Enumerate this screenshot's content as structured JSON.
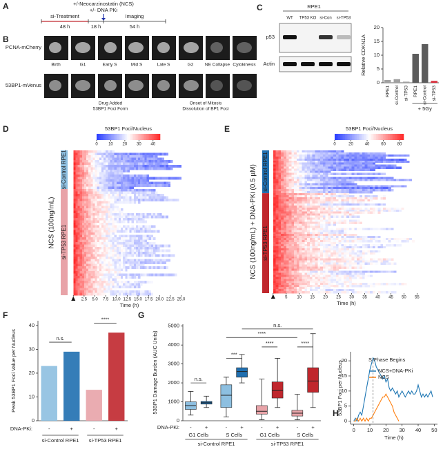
{
  "panel_labels": [
    "A",
    "B",
    "C",
    "D",
    "E",
    "F",
    "G",
    "H"
  ],
  "timeline": {
    "drug": "+/-Neocarzinostatin (NCS)",
    "pki": "+/- DNA PKi",
    "treatment": "si-Treatment",
    "t1": "48 h",
    "t2": "18 h",
    "imaging": "Imaging",
    "t3": "54 h"
  },
  "images": {
    "rows": [
      "PCNA-mCherry",
      "53BP1-mVenus"
    ],
    "columns": [
      "Birth",
      "G1",
      "Early S",
      "Mid S",
      "Late S",
      "G2",
      "NE Collapse",
      "Cytokinesis"
    ],
    "notes": [
      "Drug Added",
      "53BP1 Foci Form",
      "Onset of Mitosis",
      "Dissolution of BP1 Foci"
    ]
  },
  "blot": {
    "title": "RPE1",
    "lanes": [
      "WT",
      "TP53 KO",
      "si-Con",
      "si-TP53"
    ],
    "bands": [
      "p53",
      "Actin"
    ]
  },
  "chart_data": [
    {
      "type": "bar",
      "ylabel": "Relative CDKN1A",
      "categories": [
        "RPE1",
        "si-Control",
        "si-TP53",
        "RPE1",
        "si-Control",
        "si-TP53"
      ],
      "values": [
        1,
        1.3,
        0.4,
        10.5,
        14,
        0.7
      ],
      "colors": [
        "#a0a0a0",
        "#a0a0a0",
        "#a0a0a0",
        "#5c5c5c",
        "#5c5c5c",
        "#d9333f"
      ],
      "ylim": [
        0,
        20
      ],
      "yticks": [
        0,
        5,
        10,
        15,
        20
      ],
      "group_label": "+ 5Gy"
    },
    {
      "type": "heatmap",
      "title": "53BP1 Foci/Nucleus",
      "clim": [
        0,
        45
      ],
      "colorbar_ticks": [
        0,
        10,
        20,
        30,
        40
      ],
      "ylabel": "NCS (100ng/mL)",
      "groups": [
        {
          "name": "si-Control RPE1",
          "color": "#8dbfe0"
        },
        {
          "name": "si-TP53 RPE1",
          "color": "#e8a3a8"
        }
      ],
      "xlabel": "Time (h)",
      "xlim": [
        -1,
        27
      ],
      "xticks": [
        0,
        2.5,
        {
          "value": 5,
          "label": "5.0"
        },
        7.5,
        {
          "value": 10,
          "label": "10.0"
        },
        12.5,
        {
          "value": 15,
          "label": "15.0"
        },
        17.5,
        {
          "value": 20,
          "label": "20.0"
        },
        22.5,
        {
          "value": 25,
          "label": "25.0"
        }
      ]
    },
    {
      "type": "heatmap",
      "title": "53BP1 Foci/Nucleus",
      "clim": [
        0,
        85
      ],
      "colorbar_ticks": [
        0,
        20,
        40,
        60,
        80
      ],
      "ylabel": "NCS (100ng/mL) + DNA-PKi (0.5 µM)",
      "groups": [
        {
          "name": "si-Control RPE1",
          "color": "#1f6fb0"
        },
        {
          "name": "si-TP53 RPE1",
          "color": "#c0272d"
        }
      ],
      "xlabel": "Time (h)",
      "xlim": [
        -1,
        57
      ],
      "xticks": [
        0,
        5,
        10,
        15,
        20,
        25,
        30,
        35,
        40,
        45,
        50,
        55
      ]
    },
    {
      "type": "bar",
      "ylabel": "Peak 53BP1 Foci Value per Nucleus",
      "categories": [
        "-",
        "+",
        "-",
        "+"
      ],
      "row_label": "DNA-PKi:",
      "groups": [
        "si-Control RPE1",
        "si-TP53 RPE1"
      ],
      "values": [
        23,
        29,
        13,
        37
      ],
      "colors": [
        "#8dbfe0",
        "#1f6fb0",
        "#e8a3a8",
        "#c0272d"
      ],
      "ylim": [
        0,
        42
      ],
      "yticks": [
        0,
        10,
        20,
        30,
        40
      ],
      "annotations": [
        "n.s.",
        "****"
      ]
    },
    {
      "type": "box",
      "ylabel": "53BP1 Damage Burden (AUC Units)",
      "categories": [
        "-",
        "+",
        "-",
        "+",
        "-",
        "+",
        "-",
        "+"
      ],
      "row_label": "DNA-PKi:",
      "cell_types": [
        "G1 Cells",
        "S Cells",
        "G1 Cells",
        "S Cells"
      ],
      "groups": [
        "si-Control RPE1",
        "si-TP53 RPE1"
      ],
      "colors": [
        "#8dbfe0",
        "#1f6fb0",
        "#8dbfe0",
        "#1f6fb0",
        "#e8a3a8",
        "#c0272d",
        "#e8a3a8",
        "#c0272d"
      ],
      "boxes": [
        {
          "low": 300,
          "q1": 600,
          "median": 800,
          "q3": 1000,
          "high": 1550
        },
        {
          "low": 700,
          "q1": 880,
          "median": 950,
          "q3": 1020,
          "high": 1300
        },
        {
          "low": 200,
          "q1": 700,
          "median": 1350,
          "q3": 1900,
          "high": 2300
        },
        {
          "low": 2000,
          "q1": 2300,
          "median": 2600,
          "q3": 2800,
          "high": 3500
        },
        {
          "low": 50,
          "q1": 350,
          "median": 500,
          "q3": 800,
          "high": 2200
        },
        {
          "low": 700,
          "q1": 1200,
          "median": 1600,
          "q3": 2050,
          "high": 3300
        },
        {
          "low": 50,
          "q1": 250,
          "median": 400,
          "q3": 550,
          "high": 1400
        },
        {
          "low": 700,
          "q1": 1500,
          "median": 2100,
          "q3": 2800,
          "high": 4600
        }
      ],
      "ylim": [
        0,
        5100
      ],
      "yticks": [
        0,
        1000,
        2000,
        3000,
        4000,
        5000
      ],
      "annotations": [
        "n.s.",
        "***",
        "****",
        "****",
        "****",
        "n.s."
      ]
    },
    {
      "type": "line",
      "ylabel": "53BP1 Foci per Nucleus",
      "xlabel": "Time (h)",
      "annotation": "S Phase Begins",
      "vline": 12,
      "xlim": [
        -2,
        52
      ],
      "ylim": [
        -1,
        23
      ],
      "xticks": [
        0,
        10,
        20,
        30,
        40,
        50
      ],
      "yticks": [
        0,
        5,
        10,
        15,
        20
      ],
      "series": [
        {
          "name": "NCS+DNA-PKi",
          "color": "#1f77b4",
          "x": [
            0,
            1,
            2,
            3,
            4,
            5,
            6,
            7,
            8,
            9,
            10,
            11,
            12,
            13,
            14,
            15,
            16,
            17,
            18,
            19,
            20,
            21,
            22,
            23,
            24,
            25,
            26,
            27,
            28,
            29,
            30,
            31,
            32,
            33,
            34,
            35,
            36,
            37,
            38,
            39,
            40,
            41,
            42,
            43,
            44,
            45,
            46,
            47,
            48,
            49
          ],
          "values": [
            0,
            1,
            0,
            2,
            3,
            2,
            5,
            8,
            11,
            14,
            17,
            19,
            21,
            20,
            18,
            17,
            16,
            15,
            14,
            15,
            13,
            14,
            11,
            10,
            11,
            10,
            9,
            10,
            8,
            9,
            10,
            9,
            8,
            9,
            10,
            9,
            10,
            9,
            9,
            10,
            12,
            10,
            8,
            9,
            8,
            9,
            8,
            9,
            10,
            8
          ]
        },
        {
          "name": "NCS",
          "color": "#ff7f0e",
          "x": [
            0,
            1,
            2,
            3,
            4,
            5,
            6,
            7,
            8,
            9,
            10,
            11,
            12,
            13,
            14,
            15,
            16,
            17,
            18,
            19,
            20,
            21,
            22,
            23,
            24,
            25,
            26,
            27,
            28
          ],
          "values": [
            0,
            0,
            1,
            0,
            1,
            0,
            1,
            0,
            1,
            0,
            1,
            1,
            2,
            3,
            4,
            5,
            6,
            7,
            8,
            8,
            9,
            8,
            7,
            6,
            5,
            3,
            2,
            1,
            0
          ]
        }
      ]
    }
  ]
}
